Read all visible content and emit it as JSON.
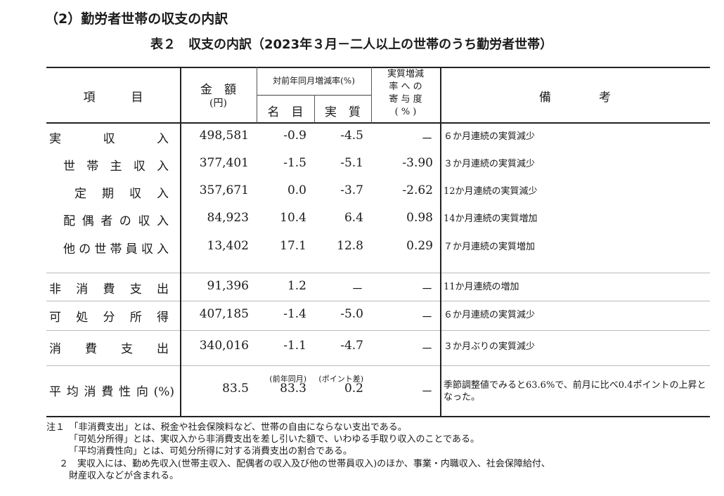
{
  "section_title": "（2）勤労者世帯の収支の内訳",
  "table_title": "表２　収支の内訳（2023年３月－二人以上の世帯のうち勤労者世帯）",
  "header": {
    "item": "項　　　目",
    "amount": "金　額",
    "amount_unit": "(円)",
    "yoy": "対前年同月増減率(%)",
    "nominal": "名　目",
    "real": "実　質",
    "contrib_lines": [
      "実質増減",
      "率 へ の",
      "寄 与 度",
      "( % )"
    ],
    "remarks": "備　　　　考"
  },
  "rows": [
    {
      "item": "実収入",
      "amount": "498,581",
      "nominal": "-0.9",
      "real": "-4.5",
      "contrib": "－",
      "remark": "６か月連続の実質減少"
    },
    {
      "item": "世帯主収入",
      "amount": "377,401",
      "nominal": "-1.5",
      "real": "-5.1",
      "contrib": "-3.90",
      "remark": "３か月連続の実質減少"
    },
    {
      "item": "定期収入",
      "amount": "357,671",
      "nominal": "0.0",
      "real": "-3.7",
      "contrib": "-2.62",
      "remark": "12か月連続の実質減少"
    },
    {
      "item": "配偶者の収入",
      "amount": "84,923",
      "nominal": "10.4",
      "real": "6.4",
      "contrib": "0.98",
      "remark": "14か月連続の実質増加"
    },
    {
      "item": "他の世帯員収入",
      "amount": "13,402",
      "nominal": "17.1",
      "real": "12.8",
      "contrib": "0.29",
      "remark": "７か月連続の実質増加"
    },
    {
      "item": "非消費支出",
      "amount": "91,396",
      "nominal": "1.2",
      "real": "－",
      "contrib": "－",
      "remark": "11か月連続の増加"
    },
    {
      "item": "可処分所得",
      "amount": "407,185",
      "nominal": "-1.4",
      "real": "-5.0",
      "contrib": "－",
      "remark": "６か月連続の実質減少"
    },
    {
      "item": "消費支出",
      "amount": "340,016",
      "nominal": "-1.1",
      "real": "-4.7",
      "contrib": "－",
      "remark": "３か月ぶりの実質減少"
    },
    {
      "item": "平均消費性向(%)",
      "amount": "83.5",
      "nominal": "83.3",
      "nominal_note": "(前年同月)",
      "real": "0.2",
      "real_note": "(ポイント差)",
      "contrib": "－",
      "remark": "季節調整値でみると63.6%で、前月に比べ0.4ポイントの上昇となった。"
    }
  ],
  "notes": [
    "注１　「非消費支出」とは、税金や社会保険料など、世帯の自由にならない支出である。",
    "「可処分所得」とは、実収入から非消費支出を差し引いた額で、いわゆる手取り収入のことである。",
    "「平均消費性向」とは、可処分所得に対する消費支出の割合である。",
    "２　実収入には、勤め先収入(世帯主収入、配偶者の収入及び他の世帯員収入)のほか、事業・内職収入、社会保障給付、",
    "財産収入などが含まれる。"
  ]
}
